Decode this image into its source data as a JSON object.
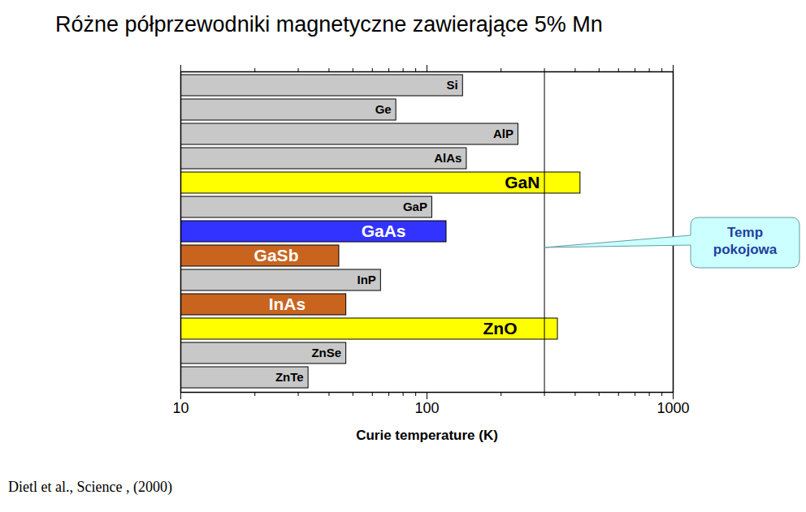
{
  "chart_data": {
    "type": "bar",
    "orientation": "horizontal",
    "title": "Różne półprzewodniki magnetyczne zawierające 5% Mn",
    "x_label": "Curie temperature (K)",
    "categories": [
      "Si",
      "Ge",
      "AlP",
      "AlAs",
      "GaN",
      "GaP",
      "GaAs",
      "GaSb",
      "InP",
      "InAs",
      "ZnO",
      "ZnSe",
      "ZnTe"
    ],
    "values": [
      140,
      75,
      235,
      145,
      420,
      105,
      120,
      44,
      65,
      47,
      340,
      47,
      33
    ],
    "colors": [
      "#c8c8c8",
      "#c8c8c8",
      "#c8c8c8",
      "#c8c8c8",
      "#ffff00",
      "#c8c8c8",
      "#3333ff",
      "#c8641e",
      "#c8c8c8",
      "#c8641e",
      "#ffff00",
      "#c8c8c8",
      "#c8c8c8"
    ],
    "log": "x",
    "xlim": [
      10,
      1000
    ],
    "xticks": [
      10,
      100,
      1000
    ],
    "grid": false,
    "annotations": [
      {
        "text": "Temp pokojowa",
        "x": 300
      }
    ],
    "source": "Dietl et al., Science , (2000)"
  }
}
